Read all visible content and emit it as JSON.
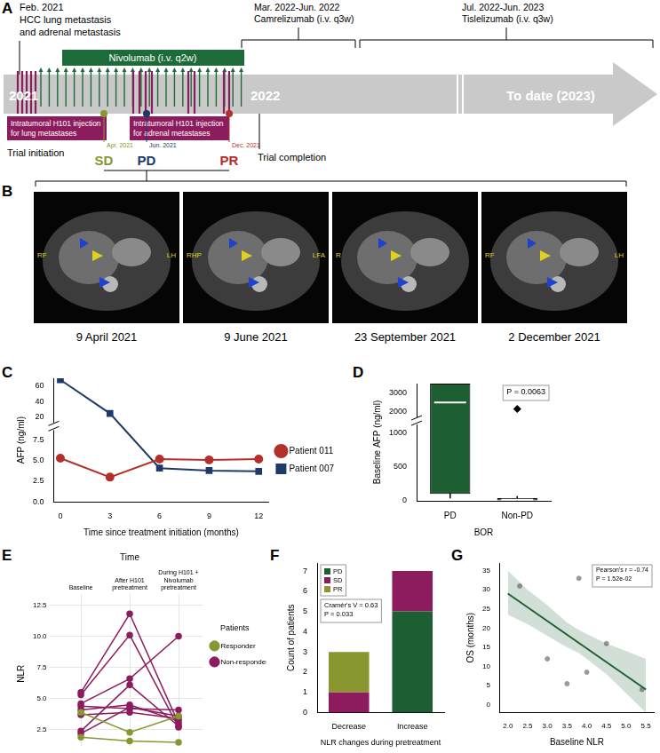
{
  "panels": {
    "A": {
      "label": "A",
      "timeline": {
        "event": [
          "Feb. 2021",
          "HCC lung metastasis",
          "and adrenal metastasis"
        ],
        "years": [
          "2021",
          "2022",
          "To date (2023)"
        ],
        "treatments": [
          {
            "name": "Nivolumab (i.v. q2w)",
            "color": "#1e6b3a"
          },
          {
            "period": "Mar. 2022-Jun. 2022",
            "name": "Camrelizumab (i.v. q3w)"
          },
          {
            "period": "Jul. 2022-Jun. 2023",
            "name": "Tislelizumab (i.v. q3w)"
          }
        ],
        "injections": [
          {
            "lines": [
              "Intratumoral H101 injection",
              "for lung metastases"
            ],
            "color": "#8c1c5e"
          },
          {
            "lines": [
              "Intratumoral H101 injection",
              "for adrenal metastases"
            ],
            "color": "#8c1c5e"
          }
        ],
        "responses": [
          {
            "date": "Apr. 2021",
            "label": "SD",
            "color": "#8a9630"
          },
          {
            "date": "Jun. 2021",
            "label": "PD",
            "color": "#1f3a68"
          },
          {
            "date": "Dec. 2021",
            "label": "PR",
            "color": "#b5302a"
          }
        ],
        "milestones": [
          "Trial initiation",
          "Trial completion"
        ]
      }
    },
    "B": {
      "label": "B",
      "images": [
        {
          "date": "9 April 2021",
          "marks": [
            "RF",
            "LH"
          ]
        },
        {
          "date": "9 June 2021",
          "marks": [
            "RHP",
            "LFA"
          ]
        },
        {
          "date": "23 September 2021",
          "marks": [
            "R"
          ]
        },
        {
          "date": "2 December 2021",
          "marks": [
            "RF",
            "LH"
          ]
        }
      ]
    }
  },
  "chart_data": [
    {
      "label": "C",
      "type": "line",
      "x_title": "Time since treatment initiation (months)",
      "y_title": "AFP (ng/ml)",
      "x": [
        0,
        3,
        6,
        9,
        12
      ],
      "xlim": [
        -0.4,
        12.6
      ],
      "xticks": [
        0,
        3,
        6,
        9,
        12
      ],
      "ylim": [
        0,
        70
      ],
      "ybreak": [
        8.5,
        15
      ],
      "yticks": [
        {
          "value": 0,
          "label": "0.0"
        },
        {
          "value": 2.5,
          "label": "2.5"
        },
        {
          "value": 5,
          "label": "5.0"
        },
        {
          "value": 7.5,
          "label": "7.5"
        },
        20,
        40,
        60
      ],
      "legend": "right",
      "series": [
        {
          "name": "Patient 011",
          "color": "#b5302a",
          "marker": "circle",
          "values": [
            5.3,
            3.0,
            5.2,
            5.1,
            5.2
          ]
        },
        {
          "name": "Patient 007",
          "color": "#1f3a68",
          "marker": "square",
          "values": [
            68,
            25,
            4.1,
            3.8,
            3.7
          ]
        }
      ]
    },
    {
      "label": "D",
      "type": "box",
      "x_title": "BOR",
      "y_title": "Baseline AFP (ng/ml)",
      "categories": [
        "PD",
        "Non-PD"
      ],
      "colors": [
        "#1d5e32",
        "#8c1c5e"
      ],
      "boxes": [
        {
          "whisker_low": 35,
          "q1": 100,
          "median": 2500,
          "q3": 3500,
          "whisker_high": 3500,
          "outliers": []
        },
        {
          "whisker_low": 2,
          "q1": 5,
          "median": 15,
          "q3": 40,
          "whisker_high": 70,
          "outliers": [
            2150
          ]
        }
      ],
      "ylim": [
        0,
        3500
      ],
      "ybreak": [
        1100,
        1800
      ],
      "yticks": [
        0,
        500,
        1000,
        2000,
        3000
      ],
      "annotation": [
        "P = 0.0063"
      ]
    },
    {
      "label": "E",
      "type": "line",
      "x_title": "Time",
      "y_title": "NLR",
      "categories": [
        "Baseline",
        "After H101 pretreatment",
        "During H101 + Nivolumab pretreatment"
      ],
      "ylim": [
        1.2,
        12.8
      ],
      "yticks": [
        {
          "value": 2.5,
          "label": "2.5"
        },
        {
          "value": 5,
          "label": "5.0"
        },
        {
          "value": 7.5,
          "label": "7.5"
        },
        {
          "value": 10,
          "label": "10.0"
        },
        {
          "value": 12.5,
          "label": "12.5"
        }
      ],
      "grid": true,
      "legend": "right",
      "legend_title": "Patients",
      "series": [
        {
          "name": "Responder",
          "color": "#8a9630",
          "lines": [
            [
              1.9,
              1.6,
              1.5
            ],
            [
              3.9,
              2.3,
              3.6
            ]
          ]
        },
        {
          "name": "Non-responder",
          "color": "#8c1c5e",
          "lines": [
            [
              5.5,
              11.8,
              3.0
            ],
            [
              5.3,
              10.1,
              2.7
            ],
            [
              4.6,
              6.6,
              10.0
            ],
            [
              4.4,
              4.2,
              4.1
            ],
            [
              4.1,
              4.5,
              3.2
            ],
            [
              3.7,
              3.9,
              3.4
            ],
            [
              2.4,
              6.1,
              2.8
            ],
            [
              2.2,
              4.3,
              3.6
            ]
          ]
        }
      ]
    },
    {
      "label": "F",
      "type": "bar",
      "stacked": true,
      "x_title": "NLR changes during pretreatment",
      "y_title": "Count of patients",
      "categories": [
        "Decrease",
        "Increase"
      ],
      "series": [
        {
          "name": "PD",
          "color": "#1d5e32",
          "values": [
            0,
            5
          ]
        },
        {
          "name": "SD",
          "color": "#8c1c5e",
          "values": [
            1,
            2
          ]
        },
        {
          "name": "PR",
          "color": "#8a9630",
          "values": [
            2,
            0
          ]
        }
      ],
      "ylim": [
        0,
        7.4
      ],
      "yticks": [
        0,
        1,
        2,
        3,
        4,
        5,
        6,
        7
      ],
      "legend": "top-left",
      "annotation": [
        "Cramér's V = 0.63",
        "P = 0.033"
      ]
    },
    {
      "label": "G",
      "type": "scatter",
      "x_title": "Baseline NLR",
      "y_title": "OS (months)",
      "x": [
        2.3,
        3.0,
        3.5,
        3.8,
        4.0,
        4.5,
        5.4
      ],
      "values": [
        31,
        12,
        5.5,
        33,
        8.5,
        16,
        4
      ],
      "color": "#9a9a9a",
      "fit": {
        "x": [
          2.0,
          5.5
        ],
        "values": [
          29,
          4
        ],
        "color": "#1d5e32"
      },
      "band": {
        "x": [
          2.0,
          2.5,
          3.0,
          3.5,
          3.8,
          4.0,
          4.5,
          5.0,
          5.5
        ],
        "lower": [
          23.5,
          21,
          18,
          15,
          13.5,
          12,
          8,
          3,
          -2
        ],
        "upper": [
          35,
          30,
          26,
          21.5,
          19.5,
          18.5,
          16,
          14,
          12
        ]
      },
      "xlim": [
        1.8,
        5.7
      ],
      "xticks": [
        {
          "value": 2,
          "label": "2.0"
        },
        {
          "value": 2.5,
          "label": "2.5"
        },
        {
          "value": 3,
          "label": "3.0"
        },
        {
          "value": 3.5,
          "label": "3.5"
        },
        {
          "value": 4,
          "label": "4.0"
        },
        {
          "value": 4.5,
          "label": "4.5"
        },
        {
          "value": 5,
          "label": "5.0"
        },
        {
          "value": 5.5,
          "label": "5.5"
        }
      ],
      "ylim": [
        -2,
        37
      ],
      "yticks": [
        0,
        5,
        10,
        15,
        20,
        25,
        30,
        35
      ],
      "annotation": [
        "Pearson's r = -0.74",
        "P = 1.52e-02"
      ]
    }
  ]
}
